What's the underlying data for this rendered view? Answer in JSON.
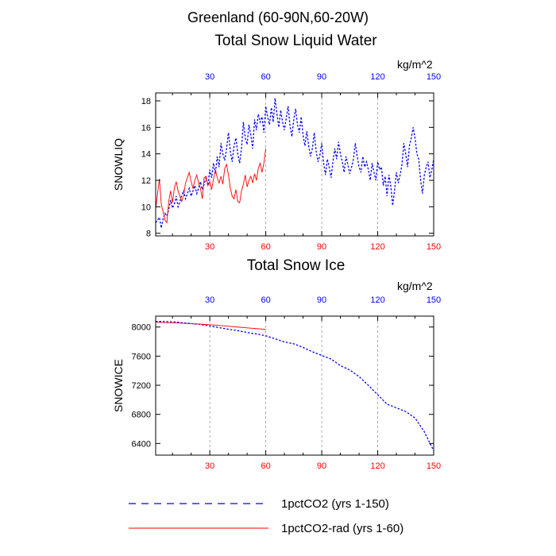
{
  "title": "Greenland (60-90N,60-20W)",
  "colors": {
    "blue": "#0000ff",
    "red": "#ff0000",
    "grid": "#9a9a9a"
  },
  "legend": [
    {
      "label": "1pctCO2 (yrs 1-150)",
      "color": "#0000ff",
      "style": "dashed"
    },
    {
      "label": "1pctCO2-rad (yrs 1-60)",
      "color": "#ff0000",
      "style": "solid"
    }
  ],
  "chart_data": [
    {
      "type": "line",
      "title": "Total Snow Liquid Water",
      "units": "kg/m^2",
      "ylabel": "SNOWLIQ",
      "xlim": [
        1,
        150
      ],
      "ylim": [
        7.8,
        18.6
      ],
      "yticks": [
        8,
        10,
        12,
        14,
        16,
        18
      ],
      "xticks_top": [
        30,
        60,
        90,
        120,
        150
      ],
      "xticks_bottom": [
        30,
        60,
        90,
        120,
        150
      ],
      "grid": "vertical dashed at 30, 60, 90, 120",
      "series": [
        {
          "name": "1pctCO2 (yrs 1-150)",
          "color": "#0000ff",
          "style": "dashed",
          "x_start": 1,
          "values": [
            8.8,
            9.0,
            9.2,
            8.4,
            9.1,
            9.5,
            9.3,
            9.8,
            10.5,
            9.9,
            10.2,
            10.8,
            10.0,
            10.4,
            10.9,
            11.2,
            10.6,
            11.0,
            11.4,
            10.8,
            11.2,
            11.6,
            11.0,
            11.4,
            11.9,
            11.3,
            11.7,
            12.2,
            11.6,
            12.8,
            12.2,
            13.3,
            12.5,
            13.8,
            13.0,
            14.8,
            14.0,
            13.5,
            14.4,
            15.6,
            14.2,
            13.4,
            14.6,
            15.2,
            14.0,
            13.3,
            14.4,
            16.4,
            15.2,
            14.7,
            16.2,
            15.4,
            14.4,
            16.6,
            15.8,
            17.0,
            16.4,
            16.8,
            15.6,
            17.6,
            16.8,
            16.2,
            17.5,
            16.4,
            18.2,
            17.0,
            16.0,
            17.3,
            16.4,
            15.8,
            16.7,
            17.6,
            16.1,
            15.3,
            16.6,
            17.4,
            16.2,
            15.6,
            16.8,
            15.4,
            14.6,
            15.7,
            14.6,
            13.8,
            14.4,
            15.6,
            14.2,
            13.4,
            13.9,
            14.8,
            13.3,
            12.4,
            13.6,
            13.0,
            12.2,
            13.4,
            14.4,
            13.6,
            14.9,
            14.0,
            13.4,
            12.6,
            13.8,
            13.2,
            12.5,
            13.0,
            13.6,
            14.8,
            13.8,
            13.0,
            12.6,
            13.8,
            13.0,
            13.4,
            12.8,
            12.0,
            13.3,
            12.6,
            12.0,
            13.4,
            12.8,
            13.0,
            11.6,
            12.3,
            10.8,
            12.4,
            11.6,
            10.1,
            11.2,
            12.6,
            11.8,
            12.4,
            13.2,
            14.8,
            14.0,
            13.0,
            14.6,
            15.2,
            16.0,
            15.2,
            14.0,
            13.6,
            12.0,
            11.0,
            12.4,
            13.0,
            13.4,
            12.2,
            12.8,
            13.6
          ]
        },
        {
          "name": "1pctCO2-rad (yrs 1-60)",
          "color": "#ff0000",
          "style": "solid",
          "x_start": 1,
          "values": [
            9.8,
            11.0,
            12.1,
            10.2,
            9.6,
            9.0,
            8.8,
            10.4,
            11.2,
            10.3,
            11.4,
            11.9,
            11.2,
            10.8,
            10.4,
            10.9,
            11.8,
            12.2,
            12.6,
            11.9,
            11.4,
            12.0,
            12.4,
            11.8,
            11.4,
            10.6,
            12.2,
            12.3,
            11.6,
            11.9,
            11.3,
            12.1,
            12.8,
            12.2,
            11.8,
            12.3,
            11.7,
            12.9,
            13.2,
            12.4,
            11.4,
            10.8,
            10.6,
            11.3,
            10.4,
            10.3,
            11.2,
            11.7,
            12.4,
            11.5,
            12.0,
            12.3,
            11.8,
            12.5,
            12.0,
            12.9,
            13.3,
            12.6,
            13.3,
            14.4
          ]
        }
      ]
    },
    {
      "type": "line",
      "title": "Total Snow Ice",
      "units": "kg/m^2",
      "ylabel": "SNOWICE",
      "xlim": [
        1,
        150
      ],
      "ylim": [
        6240,
        8150
      ],
      "yticks": [
        6400,
        6800,
        7200,
        7600,
        8000
      ],
      "xticks_top": [
        30,
        60,
        90,
        120,
        150
      ],
      "xticks_bottom": [
        30,
        60,
        90,
        120,
        150
      ],
      "grid": "vertical dashed at 30, 60, 90, 120",
      "series": [
        {
          "name": "1pctCO2 (yrs 1-150)",
          "color": "#0000ff",
          "style": "dashed",
          "x_points": [
            1,
            5,
            10,
            15,
            20,
            25,
            30,
            35,
            40,
            45,
            50,
            55,
            60,
            65,
            70,
            75,
            80,
            85,
            90,
            95,
            100,
            105,
            110,
            115,
            120,
            125,
            130,
            135,
            140,
            145,
            150
          ],
          "y_points": [
            8075,
            8076,
            8072,
            8060,
            8048,
            8035,
            8015,
            7992,
            7970,
            7950,
            7925,
            7905,
            7880,
            7838,
            7795,
            7770,
            7720,
            7660,
            7610,
            7560,
            7470,
            7410,
            7320,
            7200,
            7070,
            6940,
            6890,
            6840,
            6750,
            6560,
            6300
          ]
        },
        {
          "name": "1pctCO2-rad (yrs 1-60)",
          "color": "#ff0000",
          "style": "solid",
          "x_points": [
            1,
            5,
            10,
            15,
            20,
            25,
            30,
            35,
            40,
            45,
            50,
            55,
            60
          ],
          "y_points": [
            8068,
            8062,
            8058,
            8052,
            8046,
            8040,
            8032,
            8022,
            8012,
            8000,
            7988,
            7978,
            7968
          ]
        }
      ]
    }
  ]
}
